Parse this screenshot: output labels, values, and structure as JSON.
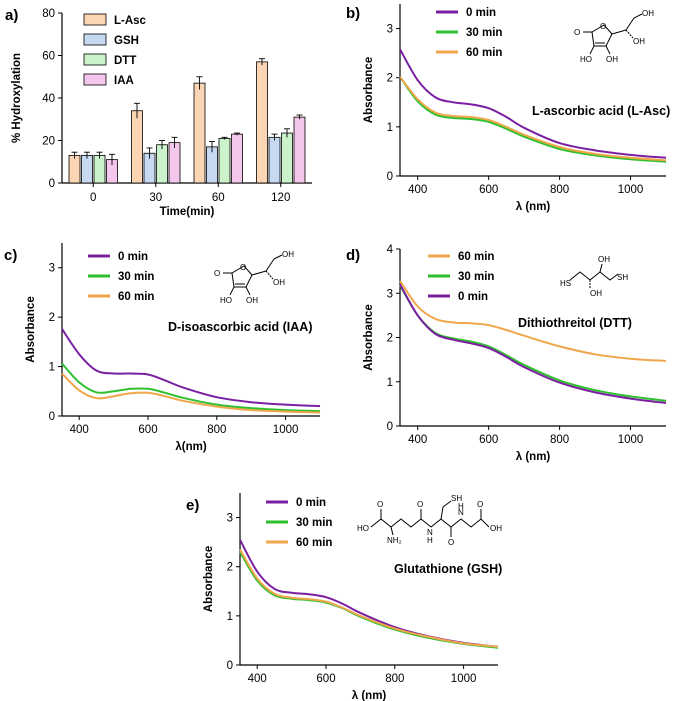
{
  "chart_data": [
    {
      "id": "a",
      "panel_label": "a)",
      "type": "bar",
      "xlabel": "Time(min)",
      "ylabel": "% Hydroxylation",
      "ylim": [
        0,
        80
      ],
      "yticks": [
        0,
        20,
        40,
        60,
        80
      ],
      "categories": [
        "0",
        "30",
        "60",
        "120"
      ],
      "legend_position": "top-left",
      "series": [
        {
          "name": "L-Asc",
          "color": "#fcd5b5",
          "values": [
            13,
            34,
            47,
            57
          ],
          "errors": [
            1.5,
            3.5,
            3,
            1.5
          ]
        },
        {
          "name": "GSH",
          "color": "#c6d9f0",
          "values": [
            13,
            14,
            17,
            21.5
          ],
          "errors": [
            1.5,
            2.5,
            2.5,
            1.5
          ]
        },
        {
          "name": "DTT",
          "color": "#ccf2cc",
          "values": [
            13,
            18,
            21,
            23.5
          ],
          "errors": [
            1.5,
            2,
            0.5,
            2
          ]
        },
        {
          "name": "IAA",
          "color": "#f4c6ec",
          "values": [
            11,
            19,
            23,
            31
          ],
          "errors": [
            2.5,
            2.5,
            0.5,
            1
          ]
        }
      ]
    },
    {
      "id": "b",
      "panel_label": "b)",
      "type": "line",
      "xlabel": "λ (nm)",
      "ylabel": "Absorbance",
      "xlim": [
        350,
        1100
      ],
      "ylim": [
        0,
        3.5
      ],
      "xticks": [
        400,
        600,
        800,
        1000
      ],
      "yticks": [
        0,
        1,
        2,
        3
      ],
      "compound": "L-ascorbic acid (L-Asc)",
      "legend_position": "top-left",
      "series": [
        {
          "name": "0 min",
          "color": "#7b1fa2",
          "x": [
            350,
            400,
            450,
            500,
            550,
            600,
            650,
            700,
            800,
            900,
            1000,
            1100
          ],
          "y": [
            2.58,
            1.95,
            1.6,
            1.5,
            1.46,
            1.38,
            1.2,
            0.98,
            0.67,
            0.52,
            0.43,
            0.37
          ]
        },
        {
          "name": "30 min",
          "color": "#2ec02e",
          "x": [
            350,
            400,
            450,
            500,
            550,
            600,
            650,
            700,
            800,
            900,
            1000,
            1100
          ],
          "y": [
            2.02,
            1.52,
            1.25,
            1.18,
            1.16,
            1.1,
            0.96,
            0.8,
            0.55,
            0.42,
            0.34,
            0.29
          ]
        },
        {
          "name": "60 min",
          "color": "#f0a64a",
          "x": [
            350,
            400,
            450,
            500,
            550,
            600,
            650,
            700,
            800,
            900,
            1000,
            1100
          ],
          "y": [
            2.02,
            1.56,
            1.29,
            1.22,
            1.2,
            1.14,
            1.0,
            0.84,
            0.59,
            0.45,
            0.37,
            0.32
          ]
        }
      ]
    },
    {
      "id": "c",
      "panel_label": "c)",
      "type": "line",
      "xlabel": "λ(nm)",
      "ylabel": "Absorbance",
      "xlim": [
        350,
        1100
      ],
      "ylim": [
        0,
        3.5
      ],
      "xticks": [
        400,
        600,
        800,
        1000
      ],
      "yticks": [
        0,
        1,
        2,
        3
      ],
      "compound": "D-isoascorbic acid (IAA)",
      "legend_position": "top-left",
      "series": [
        {
          "name": "0 min",
          "color": "#7b1fa2",
          "x": [
            350,
            400,
            450,
            500,
            550,
            600,
            650,
            700,
            800,
            900,
            1000,
            1100
          ],
          "y": [
            1.76,
            1.25,
            0.92,
            0.86,
            0.86,
            0.84,
            0.72,
            0.58,
            0.38,
            0.28,
            0.23,
            0.2
          ]
        },
        {
          "name": "30 min",
          "color": "#2ec02e",
          "x": [
            350,
            400,
            450,
            500,
            550,
            600,
            650,
            700,
            800,
            900,
            1000,
            1100
          ],
          "y": [
            1.06,
            0.68,
            0.48,
            0.5,
            0.55,
            0.55,
            0.47,
            0.37,
            0.23,
            0.16,
            0.12,
            0.1
          ]
        },
        {
          "name": "60 min",
          "color": "#f0a64a",
          "x": [
            350,
            400,
            450,
            500,
            550,
            600,
            650,
            700,
            800,
            900,
            1000,
            1100
          ],
          "y": [
            0.86,
            0.52,
            0.36,
            0.4,
            0.46,
            0.47,
            0.4,
            0.31,
            0.19,
            0.12,
            0.09,
            0.07
          ]
        }
      ]
    },
    {
      "id": "d",
      "panel_label": "d)",
      "type": "line",
      "xlabel": "λ (nm)",
      "ylabel": "Absorbance",
      "xlim": [
        350,
        1100
      ],
      "ylim": [
        0,
        4
      ],
      "xticks": [
        400,
        600,
        800,
        1000
      ],
      "yticks": [
        0,
        1,
        2,
        3,
        4
      ],
      "compound": "Dithiothreitol (DTT)",
      "legend_position": "top-left",
      "series": [
        {
          "name": "60 min",
          "color": "#f0a64a",
          "x": [
            350,
            400,
            450,
            500,
            550,
            600,
            650,
            700,
            800,
            900,
            1000,
            1100
          ],
          "y": [
            3.28,
            2.7,
            2.42,
            2.34,
            2.32,
            2.28,
            2.17,
            2.04,
            1.8,
            1.62,
            1.52,
            1.47
          ]
        },
        {
          "name": "30 min",
          "color": "#2ec02e",
          "x": [
            350,
            400,
            450,
            500,
            550,
            600,
            650,
            700,
            800,
            900,
            1000,
            1100
          ],
          "y": [
            3.18,
            2.5,
            2.1,
            1.98,
            1.91,
            1.8,
            1.6,
            1.38,
            1.03,
            0.81,
            0.67,
            0.57
          ]
        },
        {
          "name": "0 min",
          "color": "#7b1fa2",
          "x": [
            350,
            400,
            450,
            500,
            550,
            600,
            650,
            700,
            800,
            900,
            1000,
            1100
          ],
          "y": [
            3.2,
            2.5,
            2.08,
            1.95,
            1.87,
            1.76,
            1.56,
            1.33,
            0.98,
            0.76,
            0.62,
            0.52
          ]
        }
      ]
    },
    {
      "id": "e",
      "panel_label": "e)",
      "type": "line",
      "xlabel": "λ (nm)",
      "ylabel": "Absorbance",
      "xlim": [
        350,
        1100
      ],
      "ylim": [
        0,
        3.5
      ],
      "xticks": [
        400,
        600,
        800,
        1000
      ],
      "yticks": [
        0,
        1,
        2,
        3
      ],
      "compound": "Glutathione (GSH)",
      "legend_position": "top-left",
      "series": [
        {
          "name": "0 min",
          "color": "#7b1fa2",
          "x": [
            350,
            400,
            450,
            500,
            550,
            600,
            650,
            700,
            800,
            900,
            1000,
            1100
          ],
          "y": [
            2.55,
            1.9,
            1.55,
            1.47,
            1.44,
            1.38,
            1.24,
            1.06,
            0.77,
            0.58,
            0.45,
            0.37
          ]
        },
        {
          "name": "30 min",
          "color": "#2ec02e",
          "x": [
            350,
            400,
            450,
            500,
            550,
            600,
            650,
            700,
            800,
            900,
            1000,
            1100
          ],
          "y": [
            2.3,
            1.72,
            1.42,
            1.35,
            1.32,
            1.27,
            1.15,
            0.98,
            0.72,
            0.55,
            0.43,
            0.35
          ]
        },
        {
          "name": "60 min",
          "color": "#f0a64a",
          "x": [
            350,
            400,
            450,
            500,
            550,
            600,
            650,
            700,
            800,
            900,
            1000,
            1100
          ],
          "y": [
            2.35,
            1.76,
            1.45,
            1.37,
            1.34,
            1.29,
            1.16,
            1.0,
            0.74,
            0.57,
            0.44,
            0.37
          ]
        }
      ]
    }
  ],
  "structure_labels": {
    "b": {
      "o_ring": "O",
      "o_carbonyl": "O",
      "ho1": "HO",
      "oh1": "OH",
      "oh_chain": "OH",
      "oh_top": "OH"
    },
    "c": {
      "o_ring": "O",
      "o_carbonyl": "O",
      "ho1": "HO",
      "oh1": "OH",
      "oh_chain": "OH",
      "oh_top": "OH"
    },
    "d": {
      "hs": "HS",
      "sh": "SH",
      "oh_top": "OH",
      "oh_bot": "OH"
    },
    "e": {
      "ho": "HO",
      "nh2": "NH₂",
      "sh": "SH",
      "nh1": "N",
      "h1": "H",
      "nh2b": "N",
      "h2": "H",
      "oh": "OH",
      "o1": "O",
      "o2": "O",
      "o3": "O",
      "o4": "O"
    }
  }
}
